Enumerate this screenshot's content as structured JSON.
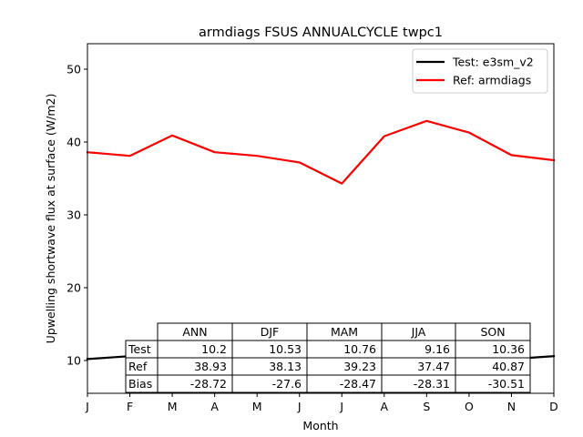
{
  "chart_data": {
    "type": "line",
    "title": "armdiags FSUS ANNUALCYCLE twpc1",
    "xlabel": "Month",
    "ylabel": "Upwelling shortwave flux at surface (W/m2)",
    "categories": [
      "J",
      "F",
      "M",
      "A",
      "M",
      "J",
      "J",
      "A",
      "S",
      "O",
      "N",
      "D"
    ],
    "ylim": [
      5.5,
      53.5
    ],
    "yticks": [
      10,
      20,
      30,
      40,
      50
    ],
    "grid": false,
    "legend_position": "top-right",
    "series": [
      {
        "name": "Test: e3sm_v2",
        "color": "#000000",
        "values": [
          10.2,
          10.6,
          11.3,
          11.1,
          9.6,
          8.7,
          8.8,
          9.8,
          10.2,
          10.5,
          10.2,
          10.6
        ]
      },
      {
        "name": "Ref: armdiags",
        "color": "#ff0000",
        "values": [
          38.6,
          38.1,
          40.9,
          38.6,
          38.1,
          37.2,
          34.3,
          40.8,
          42.9,
          41.3,
          38.2,
          37.5
        ]
      }
    ],
    "table": {
      "columns": [
        "ANN",
        "DJF",
        "MAM",
        "JJA",
        "SON"
      ],
      "rows": [
        {
          "label": "Test",
          "values": [
            "10.2",
            "10.53",
            "10.76",
            "9.16",
            "10.36"
          ]
        },
        {
          "label": "Ref",
          "values": [
            "38.93",
            "38.13",
            "39.23",
            "37.47",
            "40.87"
          ]
        },
        {
          "label": "Bias",
          "values": [
            "-28.72",
            "-27.6",
            "-28.47",
            "-28.31",
            "-30.51"
          ]
        }
      ]
    }
  }
}
